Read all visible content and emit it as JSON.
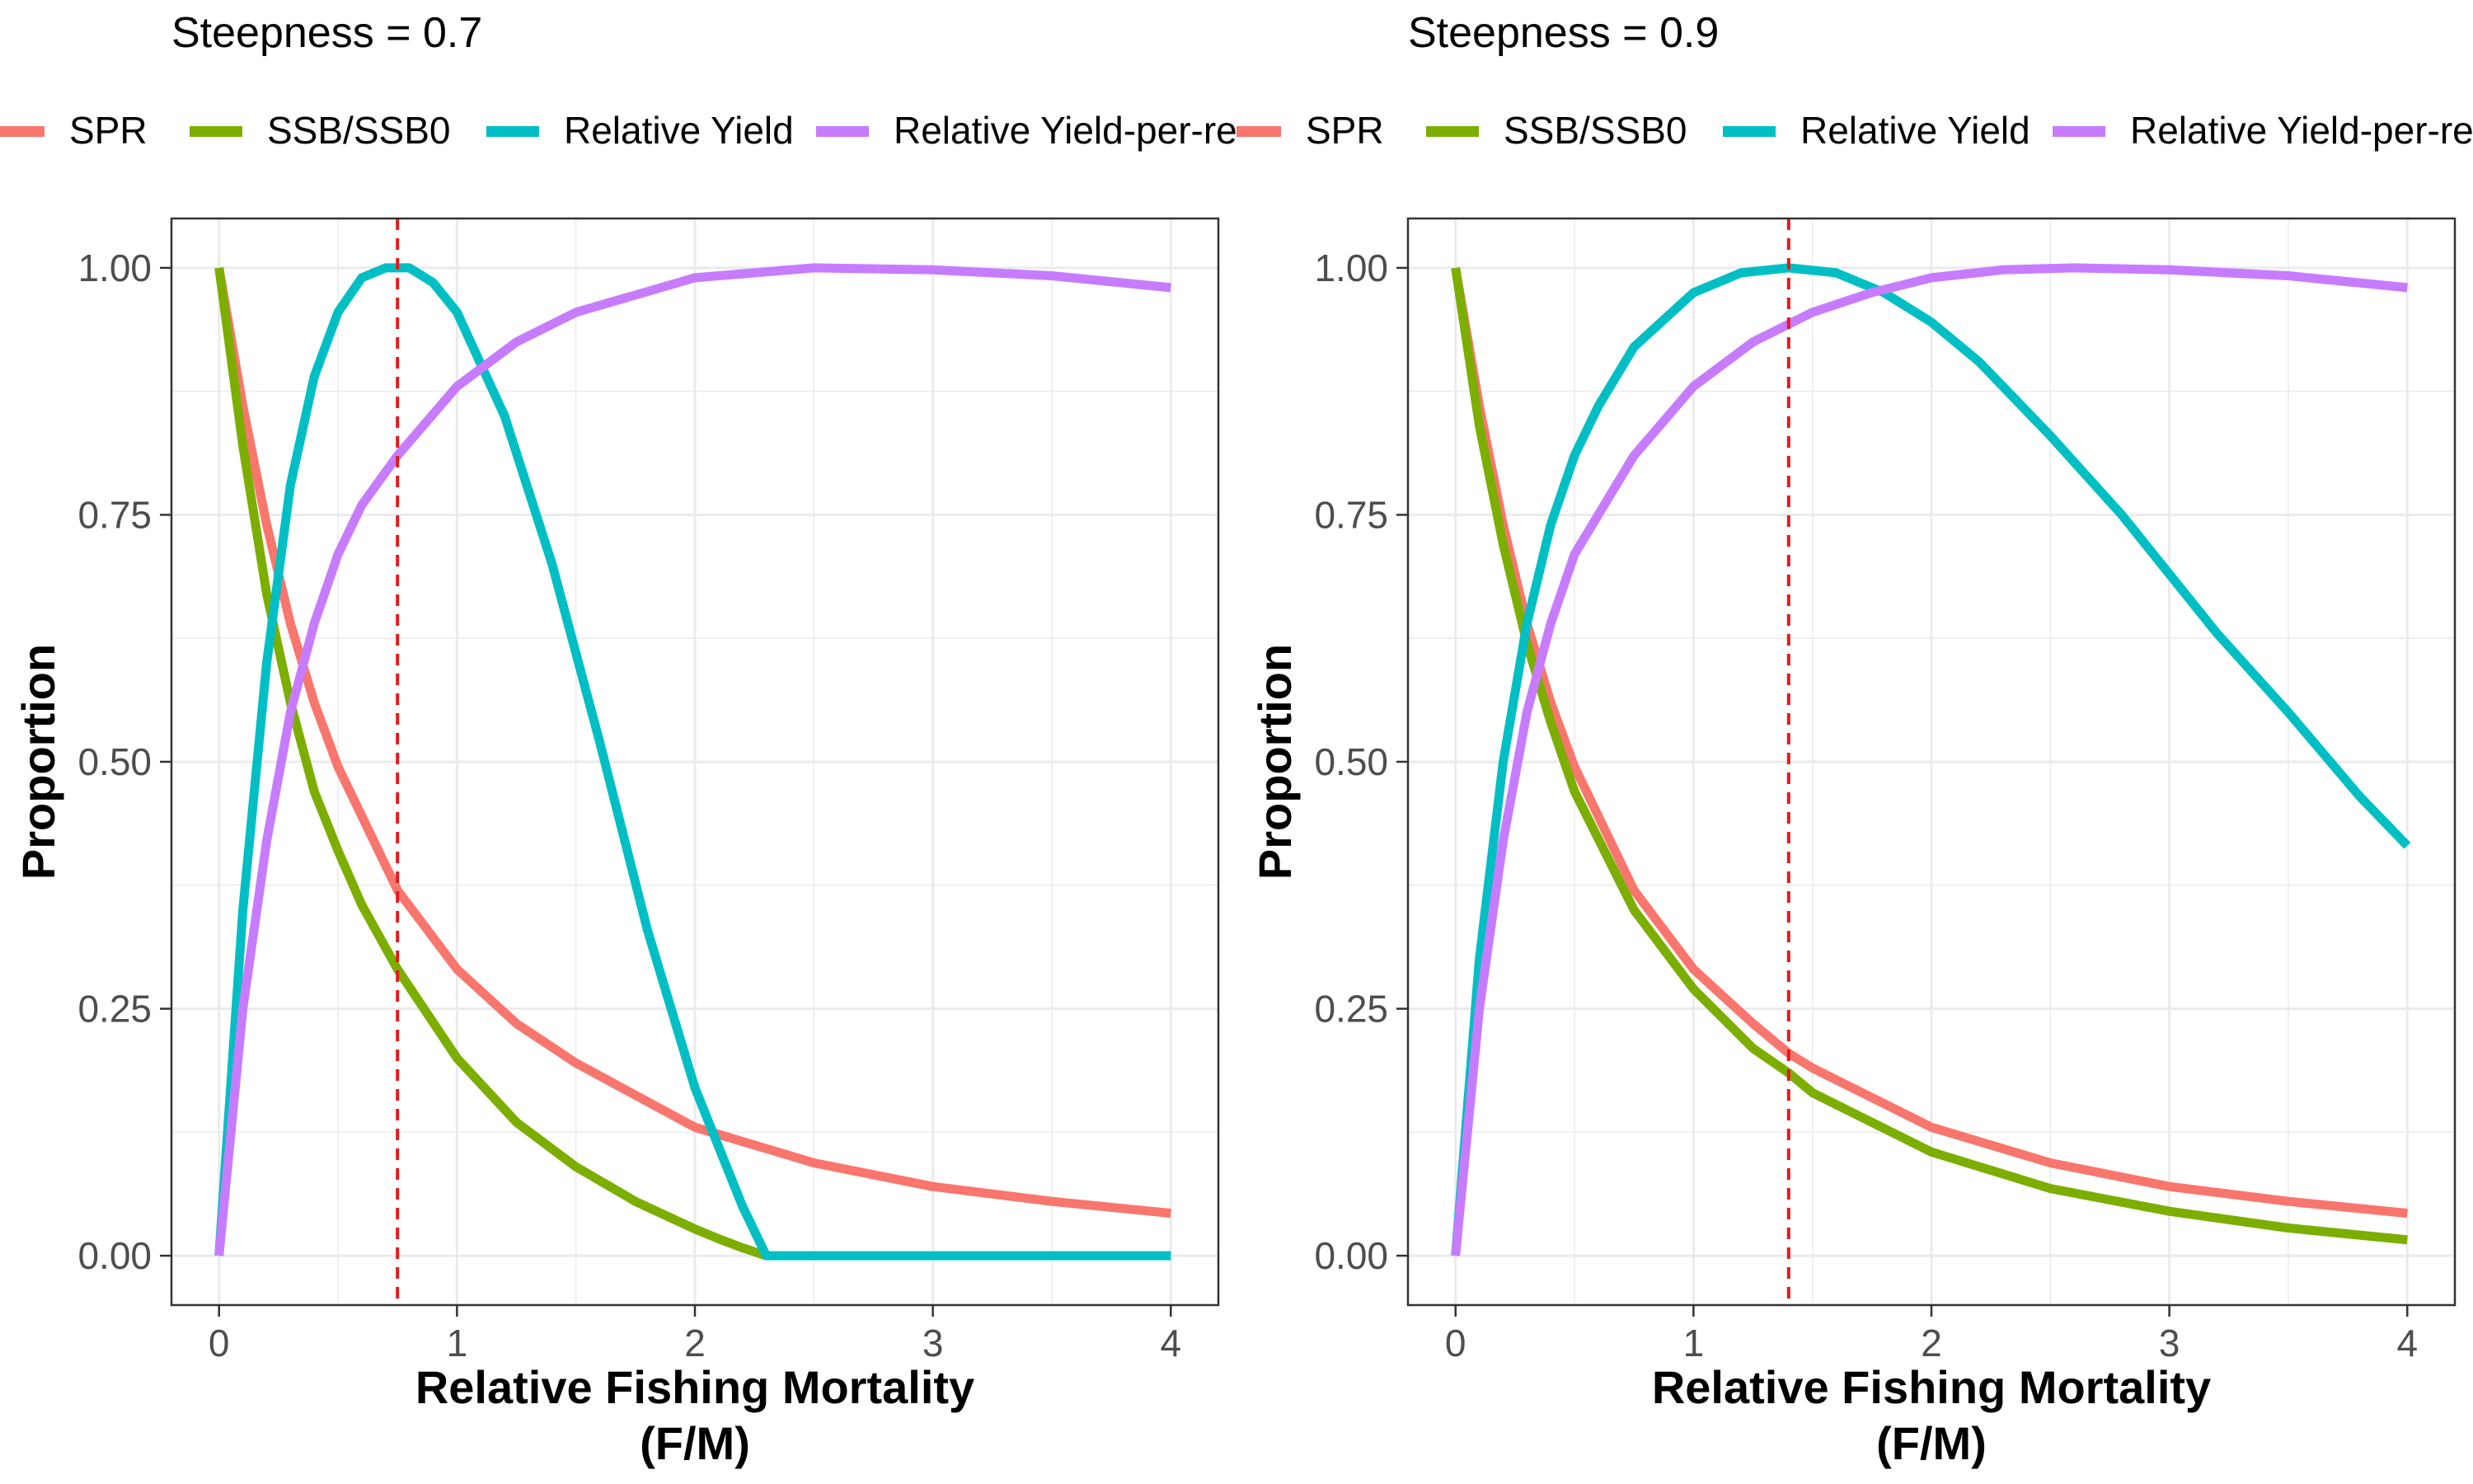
{
  "colors": {
    "spr": "#F8766D",
    "ssb": "#7CAE00",
    "yield": "#00BFC4",
    "ypr": "#C77CFF",
    "vline": "#E41A1C",
    "grid": "#EBEBEB",
    "frame": "#333333"
  },
  "chart_data": [
    {
      "type": "line",
      "title": "Steepness = 0.7",
      "xlabel_line1": "Relative Fishing Mortality",
      "xlabel_line2": "(F/M)",
      "ylabel": "Proportion",
      "xlim": [
        -0.2,
        4.2
      ],
      "ylim": [
        -0.05,
        1.05
      ],
      "x_ticks": [
        0,
        1,
        2,
        3,
        4
      ],
      "x_tick_labels": [
        "0",
        "1",
        "2",
        "3",
        "4"
      ],
      "y_ticks": [
        0,
        0.25,
        0.5,
        0.75,
        1
      ],
      "y_tick_labels": [
        "0.00",
        "0.25",
        "0.50",
        "0.75",
        "1.00"
      ],
      "grid": true,
      "legend_position": "top",
      "vline_x": 0.75,
      "legend_labels": [
        "SPR",
        "SSB/SSB0",
        "Relative Yield",
        "Relative Yield-per-recruit"
      ],
      "series": [
        {
          "name": "SPR",
          "color_key": "spr",
          "x": [
            0,
            0.1,
            0.2,
            0.3,
            0.4,
            0.5,
            0.6,
            0.75,
            1.0,
            1.25,
            1.5,
            2.0,
            2.5,
            3.0,
            3.5,
            4.0
          ],
          "y": [
            1.0,
            0.86,
            0.74,
            0.64,
            0.56,
            0.495,
            0.445,
            0.37,
            0.29,
            0.235,
            0.195,
            0.13,
            0.094,
            0.07,
            0.055,
            0.043
          ]
        },
        {
          "name": "SSB/SSB0",
          "color_key": "ssb",
          "x": [
            0,
            0.1,
            0.2,
            0.3,
            0.4,
            0.5,
            0.6,
            0.75,
            1.0,
            1.25,
            1.5,
            1.75,
            2.0,
            2.1,
            2.2,
            2.3
          ],
          "y": [
            1.0,
            0.82,
            0.67,
            0.56,
            0.47,
            0.41,
            0.355,
            0.29,
            0.2,
            0.135,
            0.09,
            0.055,
            0.027,
            0.017,
            0.008,
            0.0
          ]
        },
        {
          "name": "Relative Yield",
          "color_key": "yield",
          "x": [
            0,
            0.1,
            0.2,
            0.3,
            0.4,
            0.5,
            0.6,
            0.7,
            0.8,
            0.9,
            1.0,
            1.2,
            1.4,
            1.6,
            1.8,
            2.0,
            2.2,
            2.3,
            2.5,
            3.0,
            3.5,
            4.0
          ],
          "y": [
            0.0,
            0.35,
            0.6,
            0.78,
            0.89,
            0.955,
            0.99,
            1.0,
            1.0,
            0.985,
            0.955,
            0.85,
            0.7,
            0.52,
            0.33,
            0.17,
            0.05,
            0.0,
            0.0,
            0.0,
            0.0,
            0.0
          ]
        },
        {
          "name": "Relative Yield-per-recruit",
          "color_key": "ypr",
          "x": [
            0,
            0.1,
            0.2,
            0.3,
            0.4,
            0.5,
            0.6,
            0.75,
            1.0,
            1.25,
            1.5,
            2.0,
            2.5,
            3.0,
            3.5,
            4.0
          ],
          "y": [
            0.0,
            0.25,
            0.42,
            0.55,
            0.64,
            0.71,
            0.76,
            0.81,
            0.88,
            0.925,
            0.955,
            0.99,
            1.0,
            0.998,
            0.992,
            0.98
          ]
        }
      ]
    },
    {
      "type": "line",
      "title": "Steepness = 0.9",
      "xlabel_line1": "Relative Fishing Mortality",
      "xlabel_line2": "(F/M)",
      "ylabel": "Proportion",
      "xlim": [
        -0.2,
        4.2
      ],
      "ylim": [
        -0.05,
        1.05
      ],
      "x_ticks": [
        0,
        1,
        2,
        3,
        4
      ],
      "x_tick_labels": [
        "0",
        "1",
        "2",
        "3",
        "4"
      ],
      "y_ticks": [
        0,
        0.25,
        0.5,
        0.75,
        1
      ],
      "y_tick_labels": [
        "0.00",
        "0.25",
        "0.50",
        "0.75",
        "1.00"
      ],
      "grid": true,
      "legend_position": "top",
      "vline_x": 1.4,
      "legend_labels": [
        "SPR",
        "SSB/SSB0",
        "Relative Yield",
        "Relative Yield-per-recruit"
      ],
      "series": [
        {
          "name": "SPR",
          "color_key": "spr",
          "x": [
            0,
            0.1,
            0.2,
            0.3,
            0.4,
            0.5,
            0.75,
            1.0,
            1.25,
            1.4,
            1.5,
            2.0,
            2.5,
            3.0,
            3.5,
            4.0
          ],
          "y": [
            1.0,
            0.86,
            0.74,
            0.64,
            0.56,
            0.495,
            0.37,
            0.29,
            0.235,
            0.205,
            0.19,
            0.13,
            0.094,
            0.07,
            0.055,
            0.043
          ]
        },
        {
          "name": "SSB/SSB0",
          "color_key": "ssb",
          "x": [
            0,
            0.1,
            0.2,
            0.3,
            0.4,
            0.5,
            0.75,
            1.0,
            1.25,
            1.4,
            1.5,
            2.0,
            2.5,
            3.0,
            3.5,
            4.0
          ],
          "y": [
            1.0,
            0.84,
            0.72,
            0.62,
            0.54,
            0.47,
            0.35,
            0.27,
            0.21,
            0.185,
            0.165,
            0.105,
            0.068,
            0.045,
            0.028,
            0.016
          ]
        },
        {
          "name": "Relative Yield",
          "color_key": "yield",
          "x": [
            0,
            0.1,
            0.2,
            0.3,
            0.4,
            0.5,
            0.6,
            0.75,
            1.0,
            1.2,
            1.4,
            1.6,
            1.8,
            2.0,
            2.2,
            2.5,
            2.8,
            3.0,
            3.2,
            3.5,
            3.8,
            4.0
          ],
          "y": [
            0.0,
            0.3,
            0.5,
            0.64,
            0.74,
            0.81,
            0.86,
            0.92,
            0.975,
            0.995,
            1.0,
            0.995,
            0.975,
            0.945,
            0.905,
            0.83,
            0.75,
            0.69,
            0.63,
            0.55,
            0.465,
            0.415
          ]
        },
        {
          "name": "Relative Yield-per-recruit",
          "color_key": "ypr",
          "x": [
            0,
            0.1,
            0.2,
            0.3,
            0.4,
            0.5,
            0.75,
            1.0,
            1.25,
            1.5,
            1.75,
            2.0,
            2.3,
            2.6,
            3.0,
            3.5,
            4.0
          ],
          "y": [
            0.0,
            0.25,
            0.42,
            0.55,
            0.64,
            0.71,
            0.81,
            0.88,
            0.925,
            0.955,
            0.975,
            0.99,
            0.998,
            1.0,
            0.998,
            0.992,
            0.98
          ]
        }
      ]
    }
  ]
}
